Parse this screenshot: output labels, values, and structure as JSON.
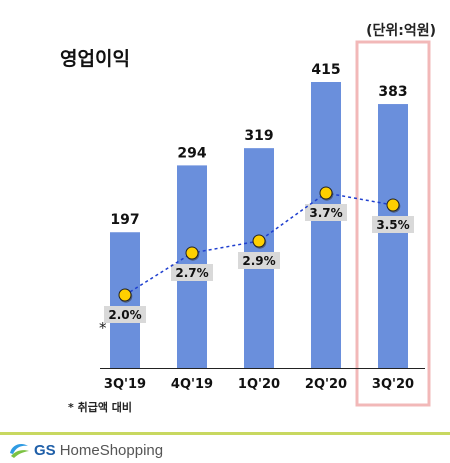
{
  "unit_label": "(단위:억원)",
  "footnote": "* 취급액 대비",
  "brand": {
    "logo_mark": "GS",
    "name": "HomeShopping"
  },
  "colors": {
    "bar": "#6a8fdc",
    "line": "#1f3fcf",
    "marker": "#ffd000",
    "highlight": "#f2b8b8",
    "label_bg": "#d9d9d9"
  },
  "chart_data": {
    "type": "bar",
    "title": "영업이익",
    "categories": [
      "3Q'19",
      "4Q'19",
      "1Q'20",
      "2Q'20",
      "3Q'20"
    ],
    "series": [
      {
        "values": [
          197,
          294,
          319,
          415,
          383
        ],
        "value_labels": [
          "197",
          "294",
          "319",
          "415",
          "383"
        ]
      },
      {
        "type": "line",
        "axis": "secondary",
        "values": [
          2.0,
          2.7,
          2.9,
          3.7,
          3.5
        ],
        "value_labels": [
          "2.0%",
          "2.7%",
          "2.9%",
          "3.7%",
          "3.5%"
        ]
      }
    ],
    "highlighted_category": "3Q'20",
    "footnote_marker": "*",
    "ylim": [
      0,
      415
    ],
    "secondary_ylim": [
      0,
      4.5
    ],
    "grid": false,
    "legend": "none"
  }
}
